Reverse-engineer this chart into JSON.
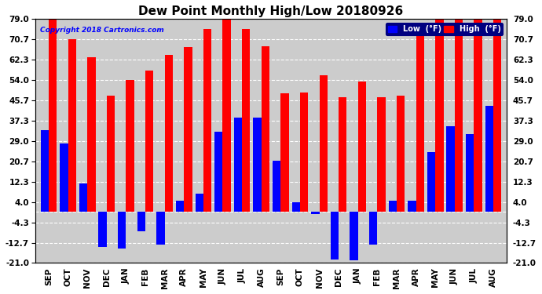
{
  "title": "Dew Point Monthly High/Low 20180926",
  "copyright": "Copyright 2018 Cartronics.com",
  "categories": [
    "SEP",
    "OCT",
    "NOV",
    "DEC",
    "JAN",
    "FEB",
    "MAR",
    "APR",
    "MAY",
    "JUN",
    "JUL",
    "AUG",
    "SEP",
    "OCT",
    "NOV",
    "DEC",
    "JAN",
    "FEB",
    "MAR",
    "APR",
    "MAY",
    "JUN",
    "JUL",
    "AUG"
  ],
  "high_values": [
    79.0,
    70.7,
    63.5,
    47.5,
    54.0,
    58.0,
    64.5,
    67.5,
    75.0,
    79.0,
    75.0,
    68.0,
    48.5,
    49.0,
    56.0,
    47.0,
    53.5,
    47.0,
    47.5,
    75.0,
    79.0,
    79.0,
    79.0,
    79.0
  ],
  "low_values": [
    33.5,
    28.0,
    11.5,
    -14.5,
    -15.0,
    -8.0,
    -13.5,
    4.5,
    7.5,
    33.0,
    38.5,
    38.5,
    21.0,
    4.0,
    -1.0,
    -19.5,
    -20.0,
    -13.5,
    4.5,
    4.5,
    24.5,
    35.0,
    32.0,
    43.5
  ],
  "high_color": "#FF0000",
  "low_color": "#0000FF",
  "bar_width": 0.42,
  "ylim": [
    -21.0,
    79.0
  ],
  "yticks": [
    79.0,
    70.7,
    62.3,
    54.0,
    45.7,
    37.3,
    29.0,
    20.7,
    12.3,
    4.0,
    -4.3,
    -12.7,
    -21.0
  ],
  "bg_color": "#FFFFFF",
  "plot_bg_color": "#CCCCCC",
  "grid_color": "#FFFFFF",
  "title_fontsize": 11,
  "tick_fontsize": 7.5,
  "legend_low_label": "Low  (°F)",
  "legend_high_label": "High  (°F)"
}
